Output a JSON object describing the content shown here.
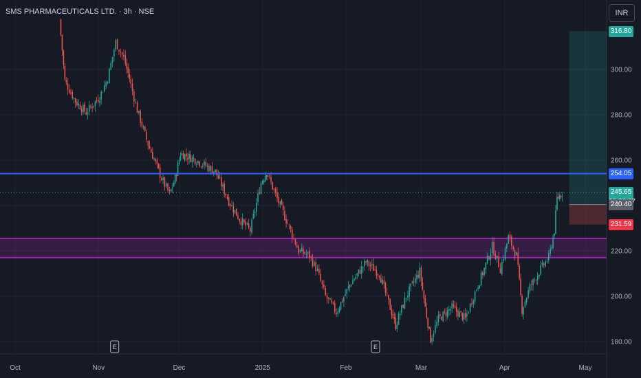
{
  "header": {
    "symbol": "SMS PHARMACEUTICALS LTD. · 3h · NSE",
    "currency": "INR"
  },
  "colors": {
    "background": "#161a25",
    "up": "#26a69a",
    "down": "#ef5350",
    "resistance_line": "#2962ff",
    "zone_border": "#9c27b0",
    "zone_fill": "rgba(156,39,176,0.22)",
    "target_zone": "rgba(38,166,154,0.20)",
    "stop_zone": "rgba(239,83,80,0.25)"
  },
  "chart_data": {
    "type": "candlestick",
    "ylim": [
      172,
      325
    ],
    "y_ticks": [
      "300.00",
      "280.00",
      "260.00",
      "240.00",
      "220.00",
      "200.00",
      "180.00"
    ],
    "y_tick_values": [
      300,
      280,
      260,
      240,
      220,
      200,
      180
    ],
    "x_ticks": [
      "Oct",
      "Nov",
      "Dec",
      "2025",
      "Feb",
      "Mar",
      "Apr",
      "May"
    ],
    "x_tick_dates": [
      "2024-10-01",
      "2024-11-01",
      "2024-12-01",
      "2025-01-01",
      "2025-02-01",
      "2025-03-01",
      "2025-04-01",
      "2025-05-01"
    ],
    "price_path": [
      [
        "2024-10-18",
        322
      ],
      [
        "2024-10-20",
        295
      ],
      [
        "2024-10-24",
        286
      ],
      [
        "2024-10-28",
        281
      ],
      [
        "2024-11-02",
        288
      ],
      [
        "2024-11-05",
        296
      ],
      [
        "2024-11-08",
        312
      ],
      [
        "2024-11-11",
        305
      ],
      [
        "2024-11-13",
        296
      ],
      [
        "2024-11-16",
        282
      ],
      [
        "2024-11-20",
        267
      ],
      [
        "2024-11-25",
        252
      ],
      [
        "2024-11-28",
        245
      ],
      [
        "2024-11-30",
        252
      ],
      [
        "2024-12-02",
        263
      ],
      [
        "2024-12-08",
        260
      ],
      [
        "2024-12-15",
        255
      ],
      [
        "2024-12-20",
        242
      ],
      [
        "2024-12-24",
        234
      ],
      [
        "2024-12-28",
        229
      ],
      [
        "2025-01-01",
        250
      ],
      [
        "2025-01-03",
        255
      ],
      [
        "2025-01-07",
        243
      ],
      [
        "2025-01-12",
        229
      ],
      [
        "2025-01-15",
        220
      ],
      [
        "2025-01-19",
        218
      ],
      [
        "2025-01-22",
        211
      ],
      [
        "2025-01-25",
        200
      ],
      [
        "2025-01-29",
        193
      ],
      [
        "2025-02-03",
        205
      ],
      [
        "2025-02-09",
        215
      ],
      [
        "2025-02-14",
        210
      ],
      [
        "2025-02-18",
        195
      ],
      [
        "2025-02-20",
        187
      ],
      [
        "2025-02-24",
        200
      ],
      [
        "2025-03-01",
        211
      ],
      [
        "2025-03-03",
        195
      ],
      [
        "2025-03-05",
        181
      ],
      [
        "2025-03-08",
        190
      ],
      [
        "2025-03-13",
        195
      ],
      [
        "2025-03-18",
        190
      ],
      [
        "2025-03-21",
        200
      ],
      [
        "2025-03-25",
        212
      ],
      [
        "2025-03-28",
        222
      ],
      [
        "2025-03-31",
        212
      ],
      [
        "2025-04-03",
        226
      ],
      [
        "2025-04-06",
        218
      ],
      [
        "2025-04-08",
        194
      ],
      [
        "2025-04-11",
        204
      ],
      [
        "2025-04-15",
        212
      ],
      [
        "2025-04-18",
        217
      ],
      [
        "2025-04-20",
        229
      ],
      [
        "2025-04-21",
        243
      ],
      [
        "2025-04-23",
        245.65
      ]
    ],
    "horizontal_line": {
      "value": 254.05,
      "label": "254.05"
    },
    "zone": {
      "top": 225.5,
      "bottom": 217.0
    },
    "dotted_last_price": 245.65,
    "position": {
      "start": "2025-04-25",
      "end": "2025-05-10",
      "target": 316.8,
      "entry": 240.4,
      "stop": 231.59
    },
    "price_tags": [
      {
        "value": 316.8,
        "label": "316.80",
        "color": "#26a69a"
      },
      {
        "value": 254.05,
        "label": "254.05",
        "color": "#2962ff"
      },
      {
        "value": 245.65,
        "label": "245.65",
        "sublabel": "02:28:27",
        "color": "#26a69a"
      },
      {
        "value": 240.4,
        "label": "240.40",
        "color": "#5d606b"
      },
      {
        "value": 231.59,
        "label": "231.59",
        "color": "#f23645"
      }
    ],
    "earnings_markers": [
      {
        "date": "2024-11-07",
        "label": "E"
      },
      {
        "date": "2025-02-12",
        "label": "E"
      }
    ]
  }
}
